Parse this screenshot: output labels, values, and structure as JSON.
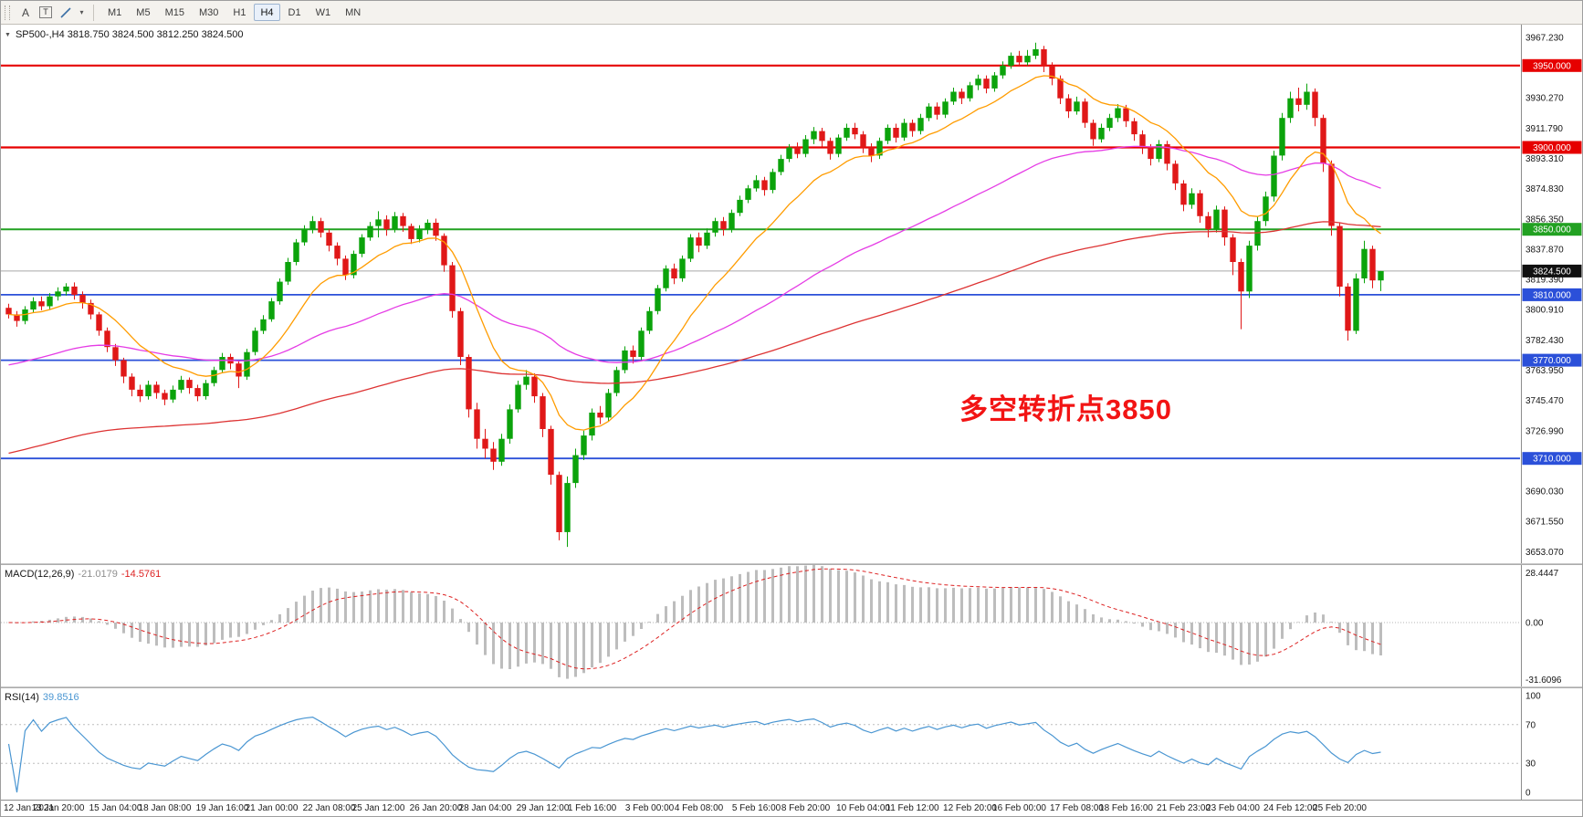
{
  "toolbar": {
    "buttons": [
      {
        "name": "cursor-style-tool",
        "glyph": "A"
      },
      {
        "name": "text-label-tool",
        "glyph": "T"
      }
    ],
    "timeframes": [
      "M1",
      "M5",
      "M15",
      "M30",
      "H1",
      "H4",
      "D1",
      "W1",
      "MN"
    ],
    "active_timeframe": "H4"
  },
  "icons": {
    "collapse": "▼",
    "dropdown": "▾",
    "trendline": "diagonal-line"
  },
  "colors": {
    "candle_up": "#0ba30b",
    "candle_down": "#e01818",
    "ma_fast": "#ff9c00",
    "ma_mid": "#e53ce5",
    "ma_slow": "#dd3333",
    "level_red": "#e60000",
    "level_green": "#22a122",
    "level_blue": "#2b50d9",
    "current_price_badge": "#101010",
    "current_price_line": "#a8a8a8",
    "macd_hist": "#bdbdbd",
    "macd_signal": "#dd2222",
    "rsi_line": "#4a96d2",
    "annotation": "#f21414"
  },
  "chart_data": {
    "type": "candlestick",
    "symbol": "SP500-",
    "timeframe": "H4",
    "title": "SP500-,H4 3818.750 3824.500 3812.250 3824.500",
    "ohlc": {
      "open": "3818.750",
      "high": "3824.500",
      "low": "3812.250",
      "close": "3824.500"
    },
    "annotation": {
      "text": "多空转折点3850"
    },
    "y_range": [
      3646,
      3975
    ],
    "y_ticks": [
      "3967.230",
      "3948.750",
      "3930.270",
      "3911.790",
      "3893.310",
      "3874.830",
      "3856.350",
      "3837.870",
      "3819.390",
      "3800.910",
      "3782.430",
      "3763.950",
      "3745.470",
      "3726.990",
      "3708.510",
      "3690.030",
      "3671.550",
      "3653.070"
    ],
    "levels": [
      {
        "price": 3950,
        "label": "3950.000",
        "color": "#e60000",
        "width": 2.2
      },
      {
        "price": 3900,
        "label": "3900.000",
        "color": "#e60000",
        "width": 2.2
      },
      {
        "price": 3850,
        "label": "3850.000",
        "color": "#22a122",
        "width": 2
      },
      {
        "price": 3810,
        "label": "3810.000",
        "color": "#2b50d9",
        "width": 1.8
      },
      {
        "price": 3770,
        "label": "3770.000",
        "color": "#2b50d9",
        "width": 1.8
      },
      {
        "price": 3710,
        "label": "3710.000",
        "color": "#2b50d9",
        "width": 1.8
      }
    ],
    "current_price": {
      "price": 3824.5,
      "label": "3824.500"
    },
    "moving_averages": [
      {
        "name": "ma-fast",
        "period": 13,
        "seed": 3798,
        "color": "#ff9c00"
      },
      {
        "name": "ma-mid",
        "period": 55,
        "seed": 3766,
        "color": "#e53ce5"
      },
      {
        "name": "ma-slow",
        "period": 140,
        "seed": 3712,
        "color": "#dd3333"
      }
    ],
    "x_labels": [
      {
        "t": "12 Jan 2021",
        "bar": 0
      },
      {
        "t": "13 Jan 20:00",
        "bar": 6
      },
      {
        "t": "15 Jan 04:00",
        "bar": 13
      },
      {
        "t": "18 Jan 08:00",
        "bar": 19
      },
      {
        "t": "19 Jan 16:00",
        "bar": 26
      },
      {
        "t": "21 Jan 00:00",
        "bar": 32
      },
      {
        "t": "22 Jan 08:00",
        "bar": 39
      },
      {
        "t": "25 Jan 12:00",
        "bar": 45
      },
      {
        "t": "26 Jan 20:00",
        "bar": 52
      },
      {
        "t": "28 Jan 04:00",
        "bar": 58
      },
      {
        "t": "29 Jan 12:00",
        "bar": 65
      },
      {
        "t": "1 Feb 16:00",
        "bar": 71
      },
      {
        "t": "3 Feb 00:00",
        "bar": 78
      },
      {
        "t": "4 Feb 08:00",
        "bar": 84
      },
      {
        "t": "5 Feb 16:00",
        "bar": 91
      },
      {
        "t": "8 Feb 20:00",
        "bar": 97
      },
      {
        "t": "10 Feb 04:00",
        "bar": 104
      },
      {
        "t": "11 Feb 12:00",
        "bar": 110
      },
      {
        "t": "12 Feb 20:00",
        "bar": 117
      },
      {
        "t": "16 Feb 00:00",
        "bar": 123
      },
      {
        "t": "17 Feb 08:00",
        "bar": 130
      },
      {
        "t": "18 Feb 16:00",
        "bar": 136
      },
      {
        "t": "21 Feb 23:00",
        "bar": 143
      },
      {
        "t": "23 Feb 04:00",
        "bar": 149
      },
      {
        "t": "24 Feb 12:00",
        "bar": 156
      },
      {
        "t": "25 Feb 20:00",
        "bar": 162
      }
    ],
    "bars": [
      [
        3802,
        3804.5,
        3795.5,
        3798
      ],
      [
        3798,
        3800,
        3790.5,
        3794
      ],
      [
        3794,
        3803,
        3792,
        3801
      ],
      [
        3801,
        3808.5,
        3799,
        3806
      ],
      [
        3806,
        3809,
        3800.5,
        3803
      ],
      [
        3803,
        3811,
        3801,
        3809
      ],
      [
        3809,
        3814.5,
        3806.5,
        3812
      ],
      [
        3812,
        3817,
        3809.5,
        3815
      ],
      [
        3815,
        3817.5,
        3807,
        3810
      ],
      [
        3810,
        3812,
        3801.5,
        3805
      ],
      [
        3805,
        3807,
        3795,
        3798
      ],
      [
        3798,
        3799.5,
        3785,
        3788
      ],
      [
        3788,
        3790,
        3775,
        3778
      ],
      [
        3778,
        3780,
        3766.5,
        3770
      ],
      [
        3770,
        3771.5,
        3756,
        3760
      ],
      [
        3760,
        3762,
        3748,
        3752
      ],
      [
        3752,
        3755,
        3744.5,
        3748
      ],
      [
        3748,
        3757.5,
        3746,
        3755
      ],
      [
        3755,
        3757,
        3746.5,
        3750
      ],
      [
        3750,
        3752,
        3742.5,
        3746
      ],
      [
        3746,
        3754.5,
        3744,
        3752
      ],
      [
        3752,
        3760.5,
        3750,
        3758
      ],
      [
        3758,
        3759.5,
        3749.5,
        3753
      ],
      [
        3753,
        3755,
        3745,
        3748
      ],
      [
        3748,
        3758,
        3746,
        3756
      ],
      [
        3756,
        3766,
        3754,
        3764
      ],
      [
        3764,
        3774.5,
        3762,
        3772
      ],
      [
        3772,
        3774,
        3764.5,
        3768
      ],
      [
        3768,
        3769.5,
        3753,
        3760
      ],
      [
        3760,
        3777,
        3758,
        3775
      ],
      [
        3775,
        3790,
        3773,
        3788
      ],
      [
        3788,
        3797.5,
        3786,
        3795
      ],
      [
        3795,
        3808,
        3793.5,
        3806
      ],
      [
        3806,
        3820,
        3804,
        3818
      ],
      [
        3818,
        3832.5,
        3816,
        3830
      ],
      [
        3830,
        3844,
        3828,
        3842
      ],
      [
        3842,
        3852.5,
        3840,
        3850
      ],
      [
        3850,
        3858,
        3847.5,
        3855
      ],
      [
        3855,
        3857,
        3845,
        3848
      ],
      [
        3848,
        3850,
        3836.5,
        3840
      ],
      [
        3840,
        3842,
        3828,
        3832
      ],
      [
        3832,
        3834,
        3819,
        3822
      ],
      [
        3822,
        3837,
        3820,
        3835
      ],
      [
        3835,
        3847,
        3833,
        3845
      ],
      [
        3845,
        3854.5,
        3843,
        3852
      ],
      [
        3852,
        3861,
        3845,
        3856
      ],
      [
        3856,
        3858.5,
        3846,
        3850
      ],
      [
        3850,
        3860.5,
        3848,
        3858
      ],
      [
        3858,
        3860,
        3848.5,
        3852
      ],
      [
        3852,
        3853.5,
        3841,
        3844
      ],
      [
        3844,
        3852.5,
        3842,
        3850
      ],
      [
        3850,
        3856,
        3847,
        3854
      ],
      [
        3854,
        3856.5,
        3843,
        3846
      ],
      [
        3846,
        3847.5,
        3824,
        3828
      ],
      [
        3828,
        3830,
        3796,
        3800
      ],
      [
        3800,
        3802,
        3767,
        3772
      ],
      [
        3772,
        3773.5,
        3735,
        3740
      ],
      [
        3740,
        3744,
        3716,
        3722
      ],
      [
        3722,
        3728,
        3710,
        3716
      ],
      [
        3716,
        3720,
        3703,
        3708
      ],
      [
        3708,
        3725,
        3705.5,
        3722
      ],
      [
        3722,
        3743,
        3719,
        3740
      ],
      [
        3740,
        3757.5,
        3738,
        3755
      ],
      [
        3755,
        3764,
        3752,
        3760
      ],
      [
        3760,
        3762,
        3744,
        3748
      ],
      [
        3748,
        3750,
        3723,
        3728
      ],
      [
        3728,
        3730,
        3694,
        3700
      ],
      [
        3700,
        3702,
        3660,
        3665
      ],
      [
        3665,
        3699,
        3656,
        3695
      ],
      [
        3695,
        3716,
        3692,
        3712
      ],
      [
        3712,
        3727,
        3709,
        3724
      ],
      [
        3724,
        3740.5,
        3721,
        3738
      ],
      [
        3738,
        3742,
        3731,
        3735
      ],
      [
        3735,
        3752.5,
        3733,
        3750
      ],
      [
        3750,
        3766,
        3748,
        3764
      ],
      [
        3764,
        3778.5,
        3762,
        3776
      ],
      [
        3776,
        3779,
        3768,
        3772
      ],
      [
        3772,
        3790,
        3770,
        3788
      ],
      [
        3788,
        3802.5,
        3786,
        3800
      ],
      [
        3800,
        3816,
        3798,
        3814
      ],
      [
        3814,
        3828,
        3812,
        3826
      ],
      [
        3826,
        3829,
        3816.5,
        3820
      ],
      [
        3820,
        3834,
        3818,
        3832
      ],
      [
        3832,
        3847,
        3830,
        3845
      ],
      [
        3845,
        3848,
        3836,
        3840
      ],
      [
        3840,
        3850.5,
        3838,
        3848
      ],
      [
        3848,
        3857,
        3845.5,
        3855
      ],
      [
        3855,
        3857.5,
        3846,
        3850
      ],
      [
        3850,
        3862,
        3848,
        3860
      ],
      [
        3860,
        3870.5,
        3858,
        3868
      ],
      [
        3868,
        3877,
        3866,
        3875
      ],
      [
        3875,
        3883,
        3873,
        3880
      ],
      [
        3880,
        3882,
        3870.5,
        3874
      ],
      [
        3874,
        3887,
        3872,
        3885
      ],
      [
        3885,
        3895.5,
        3883,
        3893
      ],
      [
        3893,
        3902,
        3891,
        3900
      ],
      [
        3900,
        3903,
        3893.5,
        3896
      ],
      [
        3896,
        3907.5,
        3894,
        3905
      ],
      [
        3905,
        3912.5,
        3902,
        3910
      ],
      [
        3910,
        3912,
        3900.5,
        3904
      ],
      [
        3904,
        3906,
        3892.5,
        3896
      ],
      [
        3896,
        3908,
        3894,
        3906
      ],
      [
        3906,
        3914.5,
        3904,
        3912
      ],
      [
        3912,
        3915,
        3905,
        3908
      ],
      [
        3908,
        3910,
        3896.5,
        3900
      ],
      [
        3900,
        3902.5,
        3891,
        3895
      ],
      [
        3895,
        3906,
        3893,
        3904
      ],
      [
        3904,
        3914,
        3902,
        3912
      ],
      [
        3912,
        3914.5,
        3903,
        3906
      ],
      [
        3906,
        3917.5,
        3904,
        3915
      ],
      [
        3915,
        3917,
        3906.5,
        3910
      ],
      [
        3910,
        3920.5,
        3908,
        3918
      ],
      [
        3918,
        3927,
        3916,
        3925
      ],
      [
        3925,
        3927.5,
        3917,
        3920
      ],
      [
        3920,
        3930,
        3918,
        3928
      ],
      [
        3928,
        3936.5,
        3926,
        3934
      ],
      [
        3934,
        3936,
        3926.5,
        3930
      ],
      [
        3930,
        3940,
        3928,
        3938
      ],
      [
        3938,
        3944.5,
        3935,
        3942
      ],
      [
        3942,
        3944,
        3933,
        3936
      ],
      [
        3936,
        3946,
        3934,
        3944
      ],
      [
        3944,
        3952.5,
        3942,
        3950
      ],
      [
        3950,
        3958,
        3948,
        3956
      ],
      [
        3956,
        3959,
        3949.5,
        3952
      ],
      [
        3952,
        3959.5,
        3950,
        3956
      ],
      [
        3956,
        3964,
        3954,
        3960
      ],
      [
        3960,
        3962,
        3946,
        3950
      ],
      [
        3950,
        3952,
        3938,
        3942
      ],
      [
        3942,
        3944,
        3926.5,
        3930
      ],
      [
        3930,
        3932.5,
        3918,
        3922
      ],
      [
        3922,
        3931,
        3920,
        3928
      ],
      [
        3928,
        3930,
        3912,
        3915
      ],
      [
        3915,
        3917,
        3901,
        3905
      ],
      [
        3905,
        3914.5,
        3903,
        3912
      ],
      [
        3912,
        3920.5,
        3910,
        3918
      ],
      [
        3918,
        3926.5,
        3915.5,
        3924
      ],
      [
        3924,
        3926,
        3912.5,
        3916
      ],
      [
        3916,
        3918,
        3904,
        3908
      ],
      [
        3908,
        3910.5,
        3896,
        3900
      ],
      [
        3900,
        3902,
        3889,
        3893
      ],
      [
        3893,
        3904.5,
        3891,
        3902
      ],
      [
        3902,
        3904,
        3886,
        3890
      ],
      [
        3890,
        3892,
        3874,
        3878
      ],
      [
        3878,
        3880,
        3861,
        3865
      ],
      [
        3865,
        3875,
        3862.5,
        3872
      ],
      [
        3872,
        3874,
        3854,
        3858
      ],
      [
        3858,
        3860.5,
        3845,
        3850
      ],
      [
        3850,
        3864.5,
        3848,
        3862
      ],
      [
        3862,
        3864,
        3840,
        3845
      ],
      [
        3845,
        3847,
        3822,
        3830
      ],
      [
        3830,
        3832,
        3789,
        3812
      ],
      [
        3812,
        3843,
        3808,
        3840
      ],
      [
        3840,
        3858,
        3837,
        3855
      ],
      [
        3855,
        3873,
        3852,
        3870
      ],
      [
        3870,
        3898,
        3867,
        3895
      ],
      [
        3895,
        3921,
        3892,
        3918
      ],
      [
        3918,
        3934,
        3915,
        3930
      ],
      [
        3930,
        3936.5,
        3922,
        3926
      ],
      [
        3926,
        3939,
        3923,
        3934
      ],
      [
        3934,
        3936,
        3913,
        3918
      ],
      [
        3918,
        3920,
        3885,
        3890
      ],
      [
        3890,
        3892,
        3846,
        3852
      ],
      [
        3852,
        3854,
        3809,
        3815
      ],
      [
        3815,
        3817,
        3782,
        3788
      ],
      [
        3788,
        3823,
        3786,
        3820
      ],
      [
        3820,
        3843,
        3817,
        3838
      ],
      [
        3838,
        3840,
        3814,
        3818.75
      ],
      [
        3818.75,
        3824.5,
        3812.25,
        3824.5
      ]
    ],
    "indicators": {
      "macd": {
        "label": "MACD(12,26,9)",
        "values": [
          "-21.0179",
          "-14.5761"
        ],
        "params": [
          12,
          26,
          9
        ],
        "axis_labels": [
          "28.4447",
          "0.00",
          "-31.6096"
        ],
        "range": [
          -31.6096,
          28.4447
        ]
      },
      "rsi": {
        "label": "RSI(14)",
        "value": "39.8516",
        "period": 14,
        "levels": [
          30,
          70
        ],
        "axis_labels": [
          "100",
          "70",
          "30",
          "0"
        ],
        "range": [
          0,
          100
        ]
      }
    }
  }
}
